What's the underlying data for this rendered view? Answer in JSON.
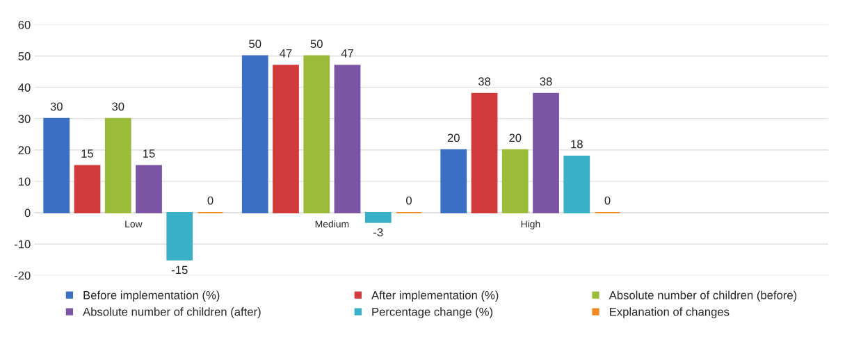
{
  "chart_data": {
    "type": "bar",
    "categories": [
      "Low",
      "Medium",
      "High",
      null
    ],
    "series": [
      {
        "name": "Before implementation (%)",
        "color": "#3a6fc4",
        "values": [
          30,
          50,
          20,
          null
        ]
      },
      {
        "name": "After implementation (%)",
        "color": "#d13b3b",
        "values": [
          15,
          47,
          38,
          null
        ]
      },
      {
        "name": "Absolute number of children (before)",
        "color": "#9bbb3b",
        "values": [
          30,
          50,
          20,
          null
        ]
      },
      {
        "name": "Absolute number of children (after)",
        "color": "#7d55a5",
        "values": [
          15,
          47,
          38,
          null
        ]
      },
      {
        "name": "Percentage change (%)",
        "color": "#3ab0c8",
        "values": [
          -15,
          -3,
          18,
          null
        ]
      },
      {
        "name": "Explanation of changes",
        "color": "#f08a24",
        "values": [
          0,
          0,
          0,
          null
        ]
      }
    ],
    "ylim": [
      -20,
      60
    ],
    "yticks": [
      -20,
      -10,
      0,
      10,
      20,
      30,
      40,
      50,
      60
    ],
    "grid": "y",
    "legend": "bottom",
    "data_labels": true
  }
}
